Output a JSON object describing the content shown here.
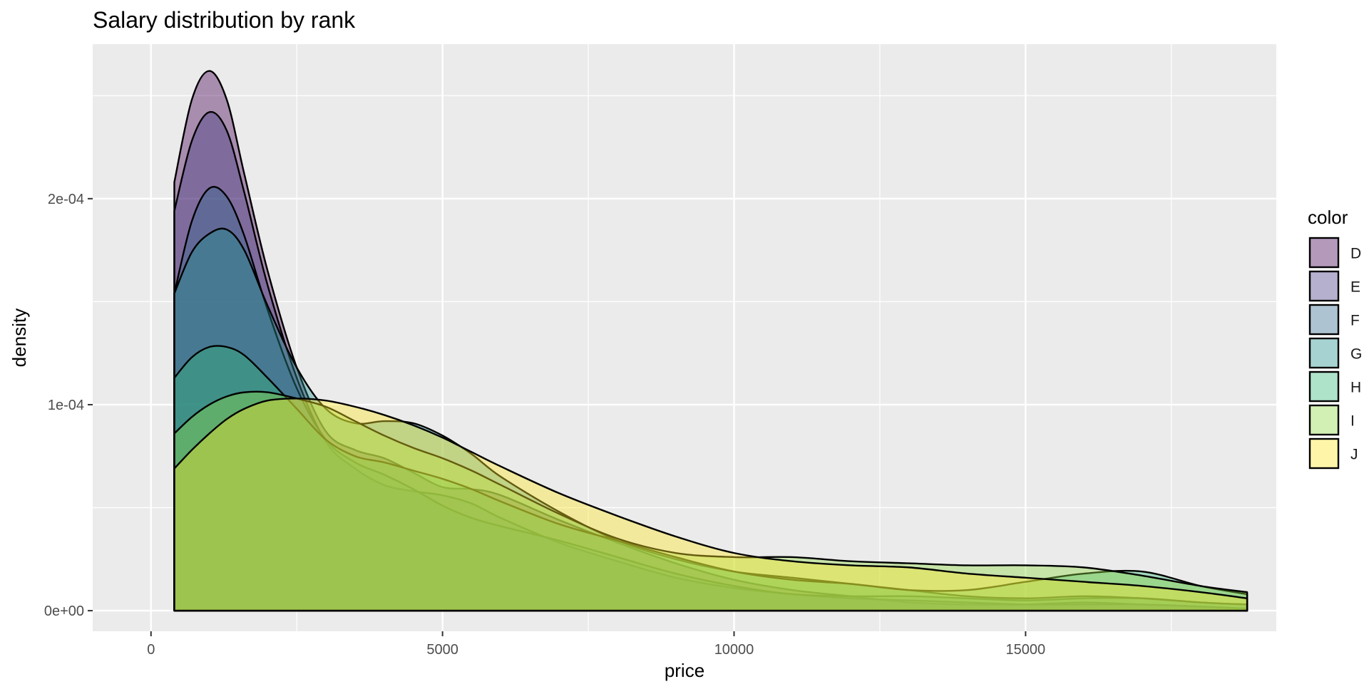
{
  "chart_data": {
    "type": "area",
    "title": "Salary distribution by rank",
    "xlabel": "price",
    "ylabel": "density",
    "xlim": [
      -1000,
      19300
    ],
    "ylim": [
      -1e-05,
      0.000275
    ],
    "x_ticks": [
      0,
      5000,
      10000,
      15000
    ],
    "x_tick_labels": [
      "0",
      "5000",
      "10000",
      "15000"
    ],
    "x_minor_ticks": [
      2500,
      7500,
      12500,
      17500
    ],
    "y_ticks": [
      0,
      0.0001,
      0.0002
    ],
    "y_tick_labels": [
      "0e+00",
      "1e-04",
      "2e-04"
    ],
    "y_minor_ticks": [
      5e-05,
      0.00015,
      0.00025
    ],
    "grid": true,
    "legend": {
      "title": "color",
      "position": "right"
    },
    "fill_opacity": 0.4,
    "series": [
      {
        "name": "D",
        "color": "#440154",
        "x": [
          400,
          700,
          1000,
          1300,
          1600,
          2000,
          2500,
          3000,
          3500,
          4000,
          4500,
          5000,
          5500,
          6000,
          7000,
          8000,
          9000,
          10000,
          11000,
          12000,
          13000,
          14000,
          15000,
          16000,
          17000,
          18000,
          18800
        ],
        "y": [
          0.000208,
          0.000248,
          0.000262,
          0.000248,
          0.000212,
          0.000165,
          0.000118,
          8.7e-05,
          7.8e-05,
          7.4e-05,
          6.7e-05,
          6e-05,
          5.9e-05,
          5.6e-05,
          4.4e-05,
          3.3e-05,
          2.3e-05,
          1.5e-05,
          1e-05,
          7e-06,
          4e-06,
          3e-06,
          3e-06,
          4e-06,
          3e-06,
          2e-06,
          1e-06
        ]
      },
      {
        "name": "E",
        "color": "#443A83",
        "x": [
          400,
          700,
          1000,
          1300,
          1600,
          2000,
          2500,
          3000,
          3500,
          4000,
          4500,
          5000,
          5500,
          6000,
          7000,
          8000,
          9000,
          10000,
          11000,
          12000,
          13000,
          14000,
          15000,
          16000,
          17000,
          18000,
          18800
        ],
        "y": [
          0.000194,
          0.000228,
          0.000242,
          0.000233,
          0.000203,
          0.000158,
          0.000113,
          8.2e-05,
          6.9e-05,
          6.1e-05,
          5.8e-05,
          5.6e-05,
          5.2e-05,
          4.5e-05,
          3.3e-05,
          2.4e-05,
          1.6e-05,
          1.1e-05,
          8e-06,
          6e-06,
          5e-06,
          4e-06,
          3e-06,
          3e-06,
          3e-06,
          2e-06,
          1e-06
        ]
      },
      {
        "name": "F",
        "color": "#31688E",
        "x": [
          400,
          700,
          1000,
          1300,
          1600,
          2000,
          2500,
          3000,
          3500,
          4000,
          4500,
          5000,
          5500,
          6000,
          7000,
          8000,
          9000,
          10000,
          11000,
          12000,
          13000,
          14000,
          15000,
          16000,
          17000,
          18000,
          18800
        ],
        "y": [
          0.000154,
          0.000189,
          0.000205,
          0.000201,
          0.000182,
          0.000146,
          0.000108,
          8.3e-05,
          7.2e-05,
          6.6e-05,
          5.9e-05,
          5.1e-05,
          4.5e-05,
          4.1e-05,
          3.4e-05,
          2.6e-05,
          1.8e-05,
          1.2e-05,
          8e-06,
          7e-06,
          7e-06,
          6e-06,
          5e-06,
          6e-06,
          6e-06,
          4e-06,
          3e-06
        ]
      },
      {
        "name": "G",
        "color": "#21908C",
        "x": [
          400,
          700,
          1000,
          1300,
          1600,
          2000,
          2500,
          3000,
          3500,
          4000,
          4500,
          5000,
          5500,
          6000,
          7000,
          8000,
          9000,
          10000,
          11000,
          12000,
          13000,
          14000,
          15000,
          16000,
          17000,
          18000,
          18800
        ],
        "y": [
          0.000154,
          0.000174,
          0.000183,
          0.000185,
          0.000175,
          0.000148,
          0.000118,
          9.8e-05,
          9.1e-05,
          9.2e-05,
          9.1e-05,
          8.5e-05,
          7.6e-05,
          6.5e-05,
          4.8e-05,
          3.4e-05,
          2.5e-05,
          1.9e-05,
          1.6e-05,
          1.3e-05,
          1e-05,
          7e-06,
          6e-06,
          7e-06,
          6e-06,
          4e-06,
          3e-06
        ]
      },
      {
        "name": "H",
        "color": "#35B779",
        "x": [
          400,
          700,
          1000,
          1300,
          1600,
          2000,
          2500,
          3000,
          3500,
          4000,
          4500,
          5000,
          5500,
          6000,
          7000,
          8000,
          9000,
          10000,
          11000,
          12000,
          13000,
          14000,
          15000,
          16000,
          17000,
          18000,
          18800
        ],
        "y": [
          0.000113,
          0.000123,
          0.000128,
          0.000128,
          0.000124,
          0.000113,
          9.8e-05,
          8.3e-05,
          7.5e-05,
          7.2e-05,
          6.8e-05,
          6.4e-05,
          5.9e-05,
          5.3e-05,
          4.2e-05,
          3.4e-05,
          2.6e-05,
          1.9e-05,
          1.5e-05,
          1.3e-05,
          1e-05,
          1e-05,
          1.4e-05,
          1.8e-05,
          1.9e-05,
          1.2e-05,
          8e-06
        ]
      },
      {
        "name": "I",
        "color": "#8FD744",
        "x": [
          400,
          700,
          1000,
          1300,
          1600,
          2000,
          2500,
          3000,
          3500,
          4000,
          4500,
          5000,
          5500,
          6000,
          7000,
          8000,
          9000,
          10000,
          11000,
          12000,
          13000,
          14000,
          15000,
          16000,
          17000,
          18000,
          18800
        ],
        "y": [
          8.6e-05,
          9.4e-05,
          0.0001,
          0.000104,
          0.000106,
          0.000106,
          0.000103,
          9.9e-05,
          9.2e-05,
          8.5e-05,
          7.9e-05,
          7.4e-05,
          6.8e-05,
          6.1e-05,
          4.7e-05,
          3.5e-05,
          2.8e-05,
          2.6e-05,
          2.6e-05,
          2.4e-05,
          2.3e-05,
          2.2e-05,
          2.2e-05,
          2.1e-05,
          1.7e-05,
          1.2e-05,
          9e-06
        ]
      },
      {
        "name": "J",
        "color": "#FDE725",
        "x": [
          400,
          700,
          1000,
          1300,
          1600,
          2000,
          2500,
          3000,
          3500,
          4000,
          4500,
          5000,
          5500,
          6000,
          7000,
          8000,
          9000,
          10000,
          11000,
          12000,
          13000,
          14000,
          15000,
          16000,
          17000,
          18000,
          18800
        ],
        "y": [
          6.9e-05,
          7.8e-05,
          8.6e-05,
          9.3e-05,
          9.8e-05,
          0.000102,
          0.000103,
          0.000102,
          9.9e-05,
          9.5e-05,
          9e-05,
          8.4e-05,
          7.7e-05,
          7e-05,
          5.7e-05,
          4.6e-05,
          3.6e-05,
          2.8e-05,
          2.4e-05,
          2.2e-05,
          2.1e-05,
          1.8e-05,
          1.6e-05,
          1.4e-05,
          1.2e-05,
          9e-06,
          6e-06
        ]
      }
    ]
  }
}
